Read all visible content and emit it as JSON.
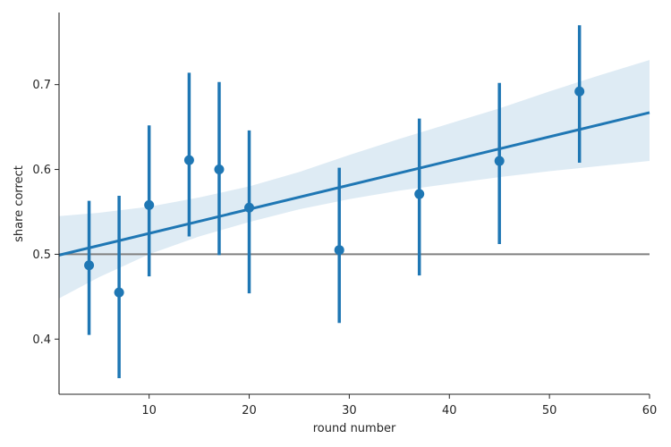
{
  "chart_data": {
    "type": "scatter",
    "xlabel": "round number",
    "ylabel": "share correct",
    "xlim": [
      1,
      60
    ],
    "ylim": [
      0.335,
      0.785
    ],
    "x_ticks": [
      10,
      20,
      30,
      40,
      50,
      60
    ],
    "y_ticks": [
      0.4,
      0.5,
      0.6,
      0.7
    ],
    "x_tick_labels": [
      "10",
      "20",
      "30",
      "40",
      "50",
      "60"
    ],
    "y_tick_labels": [
      "0.4",
      "0.5",
      "0.6",
      "0.7"
    ],
    "grid": false,
    "reference_line": {
      "y": 0.5,
      "color": "#808080"
    },
    "points": [
      {
        "x": 4,
        "y": 0.487,
        "ci": [
          0.405,
          0.563
        ]
      },
      {
        "x": 7,
        "y": 0.455,
        "ci": [
          0.354,
          0.569
        ]
      },
      {
        "x": 10,
        "y": 0.558,
        "ci": [
          0.474,
          0.652
        ]
      },
      {
        "x": 14,
        "y": 0.611,
        "ci": [
          0.521,
          0.714
        ]
      },
      {
        "x": 17,
        "y": 0.6,
        "ci": [
          0.499,
          0.703
        ]
      },
      {
        "x": 20,
        "y": 0.555,
        "ci": [
          0.454,
          0.646
        ]
      },
      {
        "x": 29,
        "y": 0.505,
        "ci": [
          0.419,
          0.602
        ]
      },
      {
        "x": 37,
        "y": 0.571,
        "ci": [
          0.475,
          0.66
        ]
      },
      {
        "x": 45,
        "y": 0.61,
        "ci": [
          0.512,
          0.702
        ]
      },
      {
        "x": 53,
        "y": 0.692,
        "ci": [
          0.608,
          0.77
        ]
      }
    ],
    "regression": {
      "x": [
        1,
        60
      ],
      "y": [
        0.499,
        0.667
      ],
      "band": {
        "x": [
          1,
          5,
          10,
          15,
          20,
          25,
          30,
          35,
          40,
          45,
          50,
          55,
          60
        ],
        "lower": [
          0.448,
          0.473,
          0.5,
          0.521,
          0.538,
          0.553,
          0.565,
          0.575,
          0.583,
          0.591,
          0.598,
          0.604,
          0.61
        ],
        "upper": [
          0.545,
          0.549,
          0.556,
          0.567,
          0.58,
          0.597,
          0.617,
          0.636,
          0.654,
          0.672,
          0.692,
          0.711,
          0.729
        ]
      }
    },
    "colors": {
      "marker": "#1f77b4",
      "band": "#1f77b4",
      "reference": "#808080",
      "axis": "#262626"
    }
  }
}
